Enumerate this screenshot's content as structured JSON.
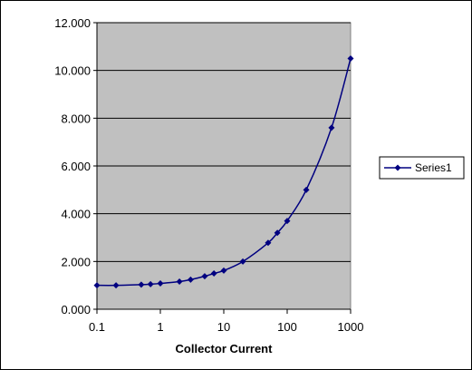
{
  "chart_data": {
    "type": "line",
    "title": "",
    "xlabel": "Collector Current",
    "ylabel": "",
    "x_scale": "log",
    "xlim": [
      0.1,
      1000
    ],
    "ylim": [
      0,
      12
    ],
    "x_ticks": [
      {
        "value": 0.1,
        "label": "0.1"
      },
      {
        "value": 1,
        "label": "1"
      },
      {
        "value": 10,
        "label": "10"
      },
      {
        "value": 100,
        "label": "100"
      },
      {
        "value": 1000,
        "label": "1000"
      }
    ],
    "y_ticks": [
      {
        "value": 0,
        "label": "0.000"
      },
      {
        "value": 2,
        "label": "2.000"
      },
      {
        "value": 4,
        "label": "4.000"
      },
      {
        "value": 6,
        "label": "6.000"
      },
      {
        "value": 8,
        "label": "8.000"
      },
      {
        "value": 10,
        "label": "10.000"
      },
      {
        "value": 12,
        "label": "12.000"
      }
    ],
    "grid": "horizontal major gridlines",
    "legend_position": "right",
    "plot_area_color": "#c0c0c0",
    "series_color": "#000080",
    "series": [
      {
        "name": "Series1",
        "marker": "diamond",
        "x": [
          0.1,
          0.2,
          0.5,
          0.7,
          1,
          2,
          3,
          5,
          7,
          10,
          20,
          50,
          70,
          100,
          200,
          500,
          1000
        ],
        "y": [
          1.0,
          1.0,
          1.03,
          1.05,
          1.08,
          1.16,
          1.24,
          1.38,
          1.5,
          1.62,
          2.0,
          2.78,
          3.2,
          3.7,
          5.0,
          7.6,
          10.5
        ]
      }
    ]
  }
}
